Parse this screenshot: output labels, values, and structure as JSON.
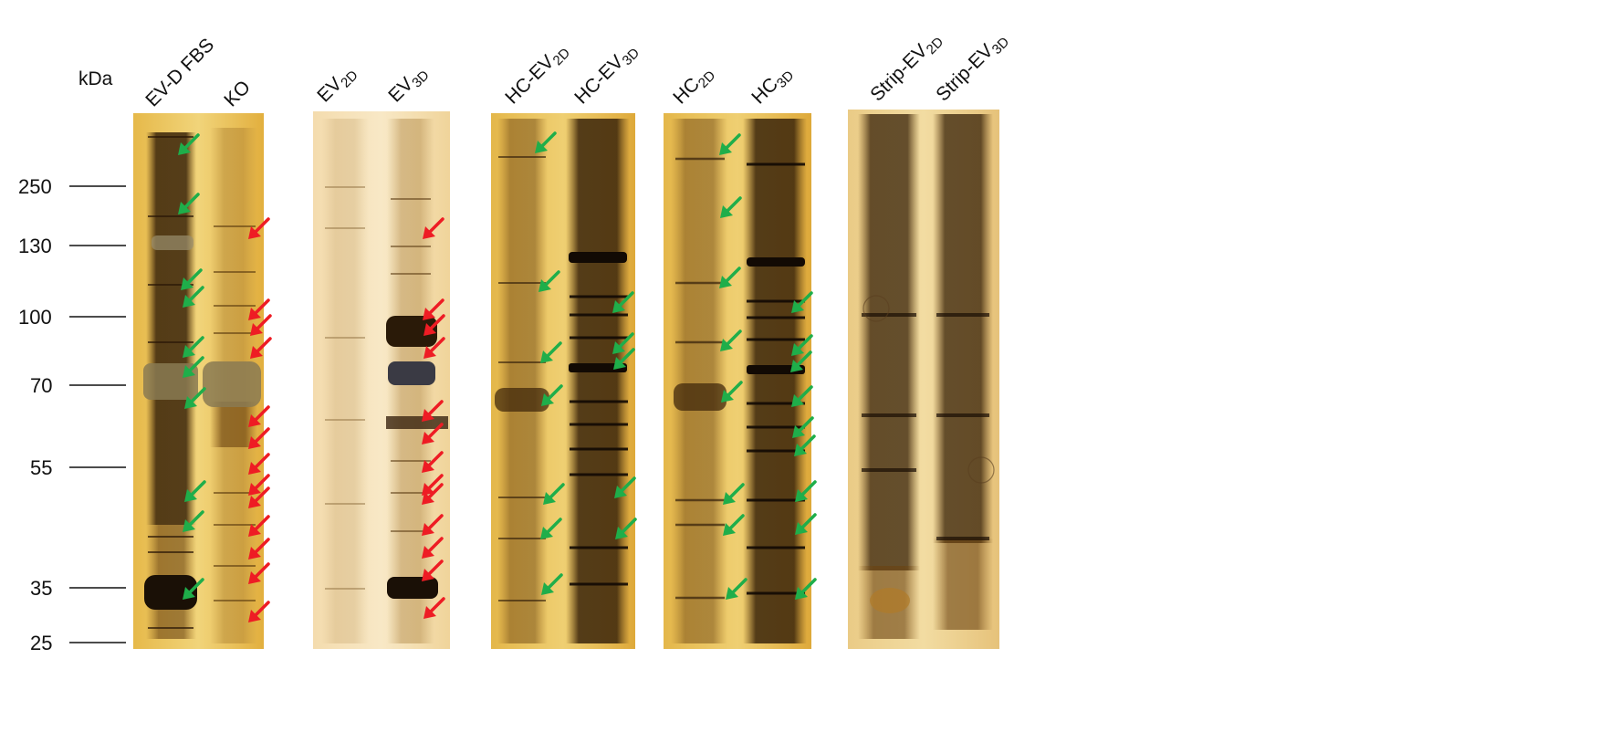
{
  "units_label": "kDa",
  "markers": [
    "250",
    "130",
    "100",
    "70",
    "55",
    "35",
    "25"
  ],
  "lanes": [
    {
      "main": "EV-D FBS",
      "sub": ""
    },
    {
      "main": "KO",
      "sub": ""
    },
    {
      "main": "EV",
      "sub": "2D"
    },
    {
      "main": "EV",
      "sub": "3D"
    },
    {
      "main": "HC-EV",
      "sub": "2D"
    },
    {
      "main": "HC-EV",
      "sub": "3D"
    },
    {
      "main": "HC",
      "sub": "2D"
    },
    {
      "main": "HC",
      "sub": "3D"
    },
    {
      "main": "Strip-EV",
      "sub": "2D"
    },
    {
      "main": "Strip-EV",
      "sub": "3D"
    }
  ],
  "colors": {
    "green_arrow": "#1fae4a",
    "red_arrow": "#ee1c24",
    "gel_light": "#f2d77a",
    "gel_dark": "#2a1a08"
  },
  "icons": [
    "green-arrow-icon",
    "red-arrow-icon"
  ]
}
